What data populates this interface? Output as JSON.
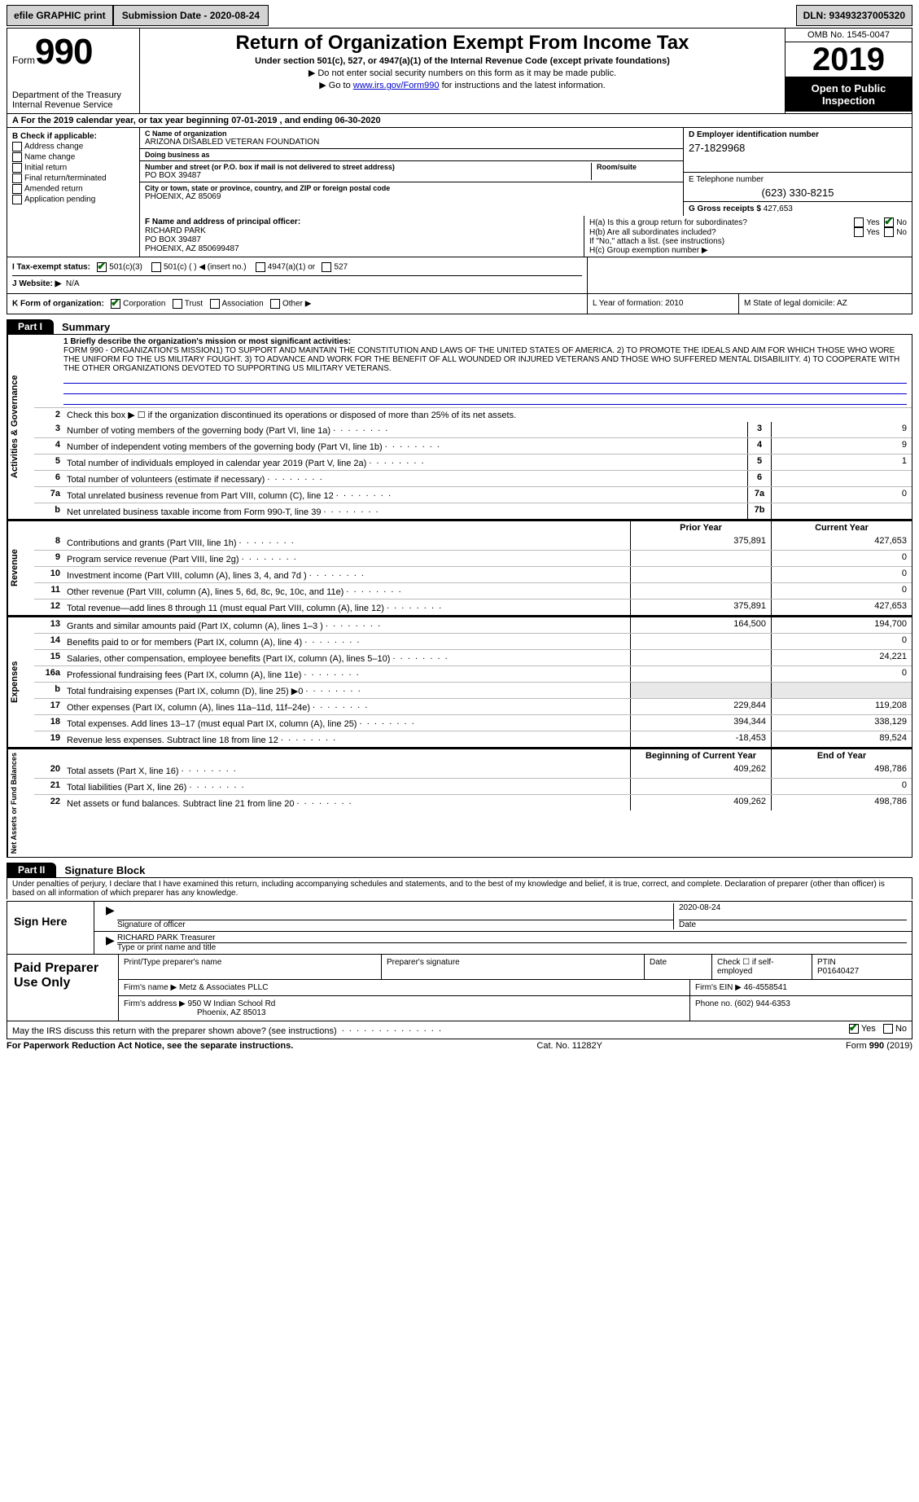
{
  "topbar": {
    "efile": "efile GRAPHIC print",
    "submission": "Submission Date - 2020-08-24",
    "dln": "DLN: 93493237005320"
  },
  "header": {
    "form_word": "Form",
    "form_num": "990",
    "dept": "Department of the Treasury Internal Revenue Service",
    "title": "Return of Organization Exempt From Income Tax",
    "sub1": "Under section 501(c), 527, or 4947(a)(1) of the Internal Revenue Code (except private foundations)",
    "sub2a": "▶ Do not enter social security numbers on this form as it may be made public.",
    "sub2b_pre": "▶ Go to ",
    "sub2b_link": "www.irs.gov/Form990",
    "sub2b_post": " for instructions and the latest information.",
    "omb": "OMB No. 1545-0047",
    "year": "2019",
    "otp": "Open to Public Inspection"
  },
  "rowA": "A   For the 2019 calendar year, or tax year beginning 07-01-2019    , and ending 06-30-2020",
  "colB": {
    "title": "B Check if applicable:",
    "items": [
      "Address change",
      "Name change",
      "Initial return",
      "Final return/terminated",
      "Amended return",
      "Application pending"
    ]
  },
  "colC": {
    "name_lbl": "C Name of organization",
    "name": "ARIZONA DISABLED VETERAN FOUNDATION",
    "dba_lbl": "Doing business as",
    "dba": "",
    "addr_lbl": "Number and street (or P.O. box if mail is not delivered to street address)",
    "room_lbl": "Room/suite",
    "addr": "PO BOX 39487",
    "city_lbl": "City or town, state or province, country, and ZIP or foreign postal code",
    "city": "PHOENIX, AZ  85069"
  },
  "colD": {
    "ein_lbl": "D Employer identification number",
    "ein": "27-1829968",
    "tel_lbl": "E Telephone number",
    "tel": "(623) 330-8215",
    "gross_lbl": "G Gross receipts $",
    "gross": "427,653"
  },
  "rowF": {
    "f_lbl": "F  Name and address of principal officer:",
    "f_name": "RICHARD PARK",
    "f_addr1": "PO BOX 39487",
    "f_addr2": "PHOENIX, AZ  850699487",
    "ha": "H(a)  Is this a group return for subordinates?",
    "hb": "H(b)  Are all subordinates included?",
    "hb_note": "If \"No,\" attach a list. (see instructions)",
    "hc": "H(c)  Group exemption number ▶",
    "yes": "Yes",
    "no": "No"
  },
  "rowI": {
    "label": "I   Tax-exempt status:",
    "opt1": "501(c)(3)",
    "opt2": "501(c) (   ) ◀ (insert no.)",
    "opt3": "4947(a)(1) or",
    "opt4": "527"
  },
  "rowJ": {
    "label": "J   Website: ▶",
    "val": "N/A"
  },
  "rowK": {
    "label": "K Form of organization:",
    "corp": "Corporation",
    "trust": "Trust",
    "assoc": "Association",
    "other": "Other ▶",
    "L": "L Year of formation: 2010",
    "M": "M State of legal domicile: AZ"
  },
  "part1": {
    "tab": "Part I",
    "title": "Summary"
  },
  "mission": {
    "lbl": "1  Briefly describe the organization's mission or most significant activities:",
    "text": "FORM 990 - ORGANIZATION'S MISSION1) TO SUPPORT AND MAINTAIN THE CONSTITUTION AND LAWS OF THE UNITED STATES OF AMERICA. 2) TO PROMOTE THE IDEALS AND AIM FOR WHICH THOSE WHO WORE THE UNIFORM FO THE US MILITARY FOUGHT. 3) TO ADVANCE AND WORK FOR THE BENEFIT OF ALL WOUNDED OR INJURED VETERANS AND THOSE WHO SUFFERED MENTAL DISABILIITY. 4) TO COOPERATE WITH THE OTHER ORGANIZATIONS DEVOTED TO SUPPORTING US MILITARY VETERANS."
  },
  "sec_gov": {
    "vlabel": "Activities & Governance",
    "l2": "Check this box ▶ ☐  if the organization discontinued its operations or disposed of more than 25% of its net assets.",
    "lines": [
      {
        "n": "3",
        "t": "Number of voting members of the governing body (Part VI, line 1a)",
        "box": "3",
        "v": "9"
      },
      {
        "n": "4",
        "t": "Number of independent voting members of the governing body (Part VI, line 1b)",
        "box": "4",
        "v": "9"
      },
      {
        "n": "5",
        "t": "Total number of individuals employed in calendar year 2019 (Part V, line 2a)",
        "box": "5",
        "v": "1"
      },
      {
        "n": "6",
        "t": "Total number of volunteers (estimate if necessary)",
        "box": "6",
        "v": ""
      },
      {
        "n": "7a",
        "t": "Total unrelated business revenue from Part VIII, column (C), line 12",
        "box": "7a",
        "v": "0"
      },
      {
        "n": "b",
        "t": "Net unrelated business taxable income from Form 990-T, line 39",
        "box": "7b",
        "v": ""
      }
    ]
  },
  "sec_rev": {
    "vlabel": "Revenue",
    "hdr": {
      "py": "Prior Year",
      "cy": "Current Year"
    },
    "lines": [
      {
        "n": "8",
        "t": "Contributions and grants (Part VIII, line 1h)",
        "py": "375,891",
        "cy": "427,653"
      },
      {
        "n": "9",
        "t": "Program service revenue (Part VIII, line 2g)",
        "py": "",
        "cy": "0"
      },
      {
        "n": "10",
        "t": "Investment income (Part VIII, column (A), lines 3, 4, and 7d )",
        "py": "",
        "cy": "0"
      },
      {
        "n": "11",
        "t": "Other revenue (Part VIII, column (A), lines 5, 6d, 8c, 9c, 10c, and 11e)",
        "py": "",
        "cy": "0"
      },
      {
        "n": "12",
        "t": "Total revenue—add lines 8 through 11 (must equal Part VIII, column (A), line 12)",
        "py": "375,891",
        "cy": "427,653"
      }
    ]
  },
  "sec_exp": {
    "vlabel": "Expenses",
    "lines": [
      {
        "n": "13",
        "t": "Grants and similar amounts paid (Part IX, column (A), lines 1–3 )",
        "py": "164,500",
        "cy": "194,700"
      },
      {
        "n": "14",
        "t": "Benefits paid to or for members (Part IX, column (A), line 4)",
        "py": "",
        "cy": "0"
      },
      {
        "n": "15",
        "t": "Salaries, other compensation, employee benefits (Part IX, column (A), lines 5–10)",
        "py": "",
        "cy": "24,221"
      },
      {
        "n": "16a",
        "t": "Professional fundraising fees (Part IX, column (A), line 11e)",
        "py": "",
        "cy": "0"
      },
      {
        "n": "b",
        "t": "Total fundraising expenses (Part IX, column (D), line 25) ▶0",
        "py": "",
        "cy": "",
        "shade": true
      },
      {
        "n": "17",
        "t": "Other expenses (Part IX, column (A), lines 11a–11d, 11f–24e)",
        "py": "229,844",
        "cy": "119,208"
      },
      {
        "n": "18",
        "t": "Total expenses. Add lines 13–17 (must equal Part IX, column (A), line 25)",
        "py": "394,344",
        "cy": "338,129"
      },
      {
        "n": "19",
        "t": "Revenue less expenses. Subtract line 18 from line 12",
        "py": "-18,453",
        "cy": "89,524"
      }
    ]
  },
  "sec_net": {
    "vlabel": "Net Assets or Fund Balances",
    "hdr": {
      "py": "Beginning of Current Year",
      "cy": "End of Year"
    },
    "lines": [
      {
        "n": "20",
        "t": "Total assets (Part X, line 16)",
        "py": "409,262",
        "cy": "498,786"
      },
      {
        "n": "21",
        "t": "Total liabilities (Part X, line 26)",
        "py": "",
        "cy": "0"
      },
      {
        "n": "22",
        "t": "Net assets or fund balances. Subtract line 21 from line 20",
        "py": "409,262",
        "cy": "498,786"
      }
    ]
  },
  "part2": {
    "tab": "Part II",
    "title": "Signature Block"
  },
  "perjury": "Under penalties of perjury, I declare that I have examined this return, including accompanying schedules and statements, and to the best of my knowledge and belief, it is true, correct, and complete. Declaration of preparer (other than officer) is based on all information of which preparer has any knowledge.",
  "sign": {
    "left": "Sign Here",
    "sig_lbl": "Signature of officer",
    "date": "2020-08-24",
    "date_lbl": "Date",
    "name": "RICHARD PARK Treasurer",
    "name_lbl": "Type or print name and title"
  },
  "prep": {
    "left": "Paid Preparer Use Only",
    "r1": {
      "c1": "Print/Type preparer's name",
      "c2": "Preparer's signature",
      "c3": "Date",
      "c4": "Check ☐ if self-employed",
      "c5_lbl": "PTIN",
      "c5": "P01640427"
    },
    "r2": {
      "lbl": "Firm's name    ▶",
      "val": "Metz & Associates PLLC",
      "ein_lbl": "Firm's EIN ▶",
      "ein": "46-4558541"
    },
    "r3": {
      "lbl": "Firm's address ▶",
      "val1": "950 W Indian School Rd",
      "val2": "Phoenix, AZ  85013",
      "ph_lbl": "Phone no.",
      "ph": "(602) 944-6353"
    }
  },
  "discuss": {
    "q": "May the IRS discuss this return with the preparer shown above? (see instructions)",
    "yes": "Yes",
    "no": "No"
  },
  "footer": {
    "l": "For Paperwork Reduction Act Notice, see the separate instructions.",
    "m": "Cat. No. 11282Y",
    "r": "Form 990 (2019)"
  }
}
